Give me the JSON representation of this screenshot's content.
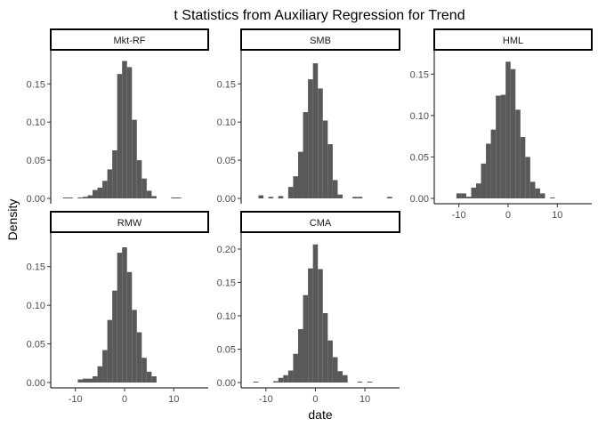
{
  "chart_data": {
    "type": "bar",
    "title": "t Statistics from Auxiliary Regression for Trend",
    "xlabel": "date",
    "ylabel": "Density",
    "facet_scales": "free_y",
    "grid": false,
    "bar_color": "#595959",
    "xlim": [
      -15,
      17
    ],
    "x_ticks": [
      -10,
      0,
      10
    ],
    "panels": [
      {
        "name": "Mkt-RF",
        "ylim": [
          0,
          0.19
        ],
        "y_ticks": [
          0.0,
          0.05,
          0.1,
          0.15
        ],
        "y_tick_labels": [
          "0.00",
          "0.05",
          "0.10",
          "0.15"
        ],
        "x_axis_shown": false,
        "bins": [
          {
            "x": -12,
            "y": 0.001
          },
          {
            "x": -11,
            "y": 0.001
          },
          {
            "x": -9,
            "y": 0.001
          },
          {
            "x": -8,
            "y": 0.002
          },
          {
            "x": -7,
            "y": 0.004
          },
          {
            "x": -6,
            "y": 0.011
          },
          {
            "x": -5,
            "y": 0.014
          },
          {
            "x": -4,
            "y": 0.023
          },
          {
            "x": -3,
            "y": 0.038
          },
          {
            "x": -2,
            "y": 0.063
          },
          {
            "x": -1,
            "y": 0.163
          },
          {
            "x": 0,
            "y": 0.18
          },
          {
            "x": 1,
            "y": 0.172
          },
          {
            "x": 2,
            "y": 0.103
          },
          {
            "x": 3,
            "y": 0.05
          },
          {
            "x": 4,
            "y": 0.026
          },
          {
            "x": 5,
            "y": 0.01
          },
          {
            "x": 6,
            "y": 0.003
          },
          {
            "x": 10,
            "y": 0.001
          },
          {
            "x": 11,
            "y": 0.001
          }
        ]
      },
      {
        "name": "SMB",
        "ylim": [
          0,
          0.19
        ],
        "y_ticks": [
          0.0,
          0.05,
          0.1,
          0.15
        ],
        "y_tick_labels": [
          "0.00",
          "0.05",
          "0.10",
          "0.15"
        ],
        "x_axis_shown": false,
        "bins": [
          {
            "x": -11,
            "y": 0.004
          },
          {
            "x": -9,
            "y": 0.002
          },
          {
            "x": -7,
            "y": 0.003
          },
          {
            "x": -5,
            "y": 0.015
          },
          {
            "x": -4,
            "y": 0.029
          },
          {
            "x": -3,
            "y": 0.061
          },
          {
            "x": -2,
            "y": 0.113
          },
          {
            "x": -1,
            "y": 0.156
          },
          {
            "x": 0,
            "y": 0.177
          },
          {
            "x": 1,
            "y": 0.144
          },
          {
            "x": 2,
            "y": 0.102
          },
          {
            "x": 3,
            "y": 0.071
          },
          {
            "x": 4,
            "y": 0.024
          },
          {
            "x": 5,
            "y": 0.005
          },
          {
            "x": 8,
            "y": 0.002
          },
          {
            "x": 9,
            "y": 0.002
          },
          {
            "x": 15,
            "y": 0.002
          }
        ]
      },
      {
        "name": "HML",
        "ylim": [
          0,
          0.175
        ],
        "y_ticks": [
          0.0,
          0.05,
          0.1,
          0.15
        ],
        "y_tick_labels": [
          "0.00",
          "0.05",
          "0.10",
          "0.15"
        ],
        "x_axis_shown": true,
        "bins": [
          {
            "x": -10,
            "y": 0.006
          },
          {
            "x": -9,
            "y": 0.006
          },
          {
            "x": -8,
            "y": 0.002
          },
          {
            "x": -7,
            "y": 0.013
          },
          {
            "x": -6,
            "y": 0.018
          },
          {
            "x": -5,
            "y": 0.042
          },
          {
            "x": -4,
            "y": 0.066
          },
          {
            "x": -3,
            "y": 0.083
          },
          {
            "x": -2,
            "y": 0.124
          },
          {
            "x": -1,
            "y": 0.125
          },
          {
            "x": 0,
            "y": 0.165
          },
          {
            "x": 1,
            "y": 0.156
          },
          {
            "x": 2,
            "y": 0.107
          },
          {
            "x": 3,
            "y": 0.074
          },
          {
            "x": 4,
            "y": 0.05
          },
          {
            "x": 5,
            "y": 0.02
          },
          {
            "x": 6,
            "y": 0.012
          },
          {
            "x": 7,
            "y": 0.006
          },
          {
            "x": 9,
            "y": 0.001
          }
        ]
      },
      {
        "name": "RMW",
        "ylim": [
          0,
          0.19
        ],
        "y_ticks": [
          0.0,
          0.05,
          0.1,
          0.15
        ],
        "y_tick_labels": [
          "0.00",
          "0.05",
          "0.10",
          "0.15"
        ],
        "x_axis_shown": true,
        "bins": [
          {
            "x": -9,
            "y": 0.004
          },
          {
            "x": -8,
            "y": 0.005
          },
          {
            "x": -7,
            "y": 0.005
          },
          {
            "x": -6,
            "y": 0.008
          },
          {
            "x": -5,
            "y": 0.021
          },
          {
            "x": -4,
            "y": 0.042
          },
          {
            "x": -3,
            "y": 0.081
          },
          {
            "x": -2,
            "y": 0.119
          },
          {
            "x": -1,
            "y": 0.168
          },
          {
            "x": 0,
            "y": 0.175
          },
          {
            "x": 1,
            "y": 0.143
          },
          {
            "x": 2,
            "y": 0.094
          },
          {
            "x": 3,
            "y": 0.065
          },
          {
            "x": 4,
            "y": 0.032
          },
          {
            "x": 5,
            "y": 0.014
          },
          {
            "x": 6,
            "y": 0.008
          }
        ]
      },
      {
        "name": "CMA",
        "ylim": [
          0,
          0.22
        ],
        "y_ticks": [
          0.0,
          0.05,
          0.1,
          0.15,
          0.2
        ],
        "y_tick_labels": [
          "0.00",
          "0.05",
          "0.10",
          "0.15",
          "0.20"
        ],
        "x_axis_shown": true,
        "bins": [
          {
            "x": -12,
            "y": 0.001
          },
          {
            "x": -8,
            "y": 0.002
          },
          {
            "x": -7,
            "y": 0.007
          },
          {
            "x": -6,
            "y": 0.011
          },
          {
            "x": -5,
            "y": 0.018
          },
          {
            "x": -4,
            "y": 0.043
          },
          {
            "x": -3,
            "y": 0.08
          },
          {
            "x": -2,
            "y": 0.131
          },
          {
            "x": -1,
            "y": 0.171
          },
          {
            "x": 0,
            "y": 0.207
          },
          {
            "x": 1,
            "y": 0.17
          },
          {
            "x": 2,
            "y": 0.104
          },
          {
            "x": 3,
            "y": 0.063
          },
          {
            "x": 4,
            "y": 0.038
          },
          {
            "x": 5,
            "y": 0.017
          },
          {
            "x": 6,
            "y": 0.011
          },
          {
            "x": 9,
            "y": 0.001
          },
          {
            "x": 11,
            "y": 0.001
          }
        ]
      }
    ]
  }
}
